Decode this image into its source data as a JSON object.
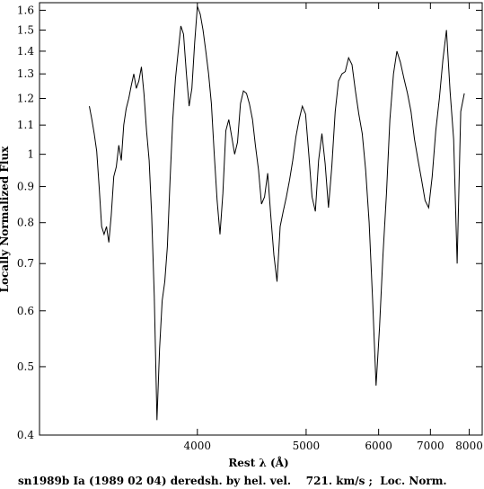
{
  "chart_data": {
    "type": "line",
    "title": "",
    "xlabel": "Rest λ (Å)",
    "ylabel": "Locally Normalized Flux",
    "caption": "sn1989b Ia (1989 02 04) deredsh. by hel. vel.    721. km/s ;  Loc. Norm.",
    "xscale": "reciprocal",
    "yscale": "log",
    "xlim": [
      3100,
      8400
    ],
    "ylim": [
      0.4,
      1.64
    ],
    "grid": false,
    "x_ticks": [
      4000,
      5000,
      6000,
      7000,
      8000
    ],
    "x_tick_labels": [
      "4000",
      "5000",
      "6000",
      "7000",
      "8000"
    ],
    "y_ticks": [
      0.4,
      0.5,
      0.6,
      0.7,
      0.8,
      0.9,
      1,
      1.1,
      1.2,
      1.3,
      1.4,
      1.5,
      1.6
    ],
    "y_tick_labels": [
      "0.4",
      "0.5",
      "0.6",
      "0.7",
      "0.8",
      "0.9",
      "1",
      "1.1",
      "1.2",
      "1.3",
      "1.4",
      "1.5",
      "1.6"
    ],
    "series": [
      {
        "name": "",
        "color": "#000000",
        "x": [
          3337,
          3350,
          3362,
          3375,
          3388,
          3401,
          3414,
          3427,
          3440,
          3453,
          3467,
          3481,
          3495,
          3509,
          3523,
          3537,
          3552,
          3566,
          3581,
          3596,
          3611,
          3627,
          3642,
          3658,
          3674,
          3690,
          3706,
          3723,
          3740,
          3757,
          3774,
          3791,
          3809,
          3827,
          3845,
          3864,
          3882,
          3901,
          3921,
          3940,
          3960,
          3980,
          4000,
          4021,
          4042,
          4063,
          4084,
          4106,
          4128,
          4151,
          4174,
          4197,
          4221,
          4245,
          4269,
          4294,
          4319,
          4344,
          4370,
          4397,
          4423,
          4451,
          4478,
          4507,
          4535,
          4564,
          4594,
          4624,
          4655,
          4686,
          4718,
          4750,
          4783,
          4817,
          4851,
          4886,
          4921,
          4957,
          4994,
          5031,
          5069,
          5108,
          5148,
          5188,
          5229,
          5271,
          5314,
          5358,
          5402,
          5448,
          5494,
          5541,
          5590,
          5639,
          5689,
          5741,
          5793,
          5847,
          5902,
          5958,
          6015,
          6073,
          6133,
          6193,
          6256,
          6319,
          6384,
          6451,
          6519,
          6588,
          6659,
          6732,
          6807,
          6883,
          6961,
          7041,
          7123,
          7207,
          7293,
          7381,
          7472,
          7565,
          7660,
          7757,
          7858
        ],
        "y": [
          1.17,
          1.12,
          1.07,
          1.01,
          0.9,
          0.79,
          0.77,
          0.79,
          0.75,
          0.82,
          0.93,
          0.96,
          1.03,
          0.98,
          1.1,
          1.16,
          1.2,
          1.25,
          1.3,
          1.24,
          1.27,
          1.33,
          1.22,
          1.08,
          0.98,
          0.82,
          0.63,
          0.42,
          0.53,
          0.62,
          0.66,
          0.74,
          0.92,
          1.12,
          1.28,
          1.4,
          1.52,
          1.48,
          1.3,
          1.17,
          1.24,
          1.44,
          1.62,
          1.58,
          1.5,
          1.4,
          1.3,
          1.18,
          1.0,
          0.86,
          0.77,
          0.88,
          1.08,
          1.12,
          1.06,
          1.0,
          1.04,
          1.18,
          1.23,
          1.22,
          1.18,
          1.12,
          1.03,
          0.95,
          0.85,
          0.87,
          0.94,
          0.82,
          0.72,
          0.66,
          0.79,
          0.83,
          0.87,
          0.92,
          0.98,
          1.06,
          1.12,
          1.17,
          1.14,
          1.0,
          0.87,
          0.83,
          0.98,
          1.07,
          0.97,
          0.84,
          0.96,
          1.15,
          1.27,
          1.3,
          1.31,
          1.37,
          1.34,
          1.23,
          1.14,
          1.07,
          0.95,
          0.8,
          0.62,
          0.47,
          0.57,
          0.72,
          0.88,
          1.12,
          1.3,
          1.4,
          1.35,
          1.28,
          1.22,
          1.15,
          1.05,
          0.98,
          0.92,
          0.86,
          0.84,
          0.93,
          1.08,
          1.2,
          1.36,
          1.5,
          1.23,
          1.05,
          0.7,
          1.15,
          1.22
        ]
      }
    ]
  }
}
